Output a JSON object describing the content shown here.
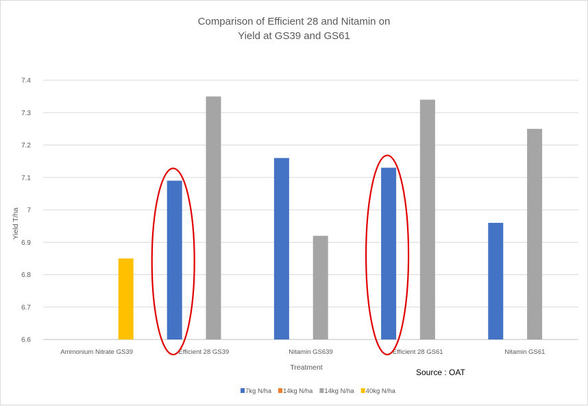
{
  "chart_data": {
    "type": "bar",
    "title_line1": "Comparison of Efficient 28 and Nitamin on",
    "title_line2": "Yield at GS39 and GS61",
    "xlabel": "Treatment",
    "ylabel": "Yield T/ha",
    "ylim": [
      6.6,
      7.4
    ],
    "yticks": [
      "6.6",
      "6.7",
      "6.8",
      "6.9",
      "7",
      "7.1",
      "7.2",
      "7.3",
      "7.4"
    ],
    "grid": true,
    "legend_position": "bottom",
    "categories": [
      "Ammonium Nitrate GS39",
      "Efficient 28 GS39",
      "Nitamin GS639",
      "Efficient 28 GS61",
      "Nitamin GS61"
    ],
    "series": [
      {
        "name": "7kg N/ha",
        "color": "#4472C4",
        "values": [
          null,
          7.09,
          7.16,
          7.13,
          6.96
        ]
      },
      {
        "name": "14kg N/ha",
        "color": "#ED7D31",
        "values": [
          null,
          null,
          null,
          null,
          null
        ]
      },
      {
        "name": "14kg N/ha",
        "color": "#A5A5A5",
        "values": [
          null,
          7.35,
          6.92,
          7.34,
          7.25
        ]
      },
      {
        "name": "40kg N/ha",
        "color": "#FFC000",
        "values": [
          6.85,
          null,
          null,
          null,
          null
        ]
      }
    ],
    "annotations": {
      "source": "Source : OAT",
      "highlight_color": "#E00000",
      "highlighted_categories": [
        "Efficient 28 GS39",
        "Efficient 28 GS61"
      ]
    }
  }
}
